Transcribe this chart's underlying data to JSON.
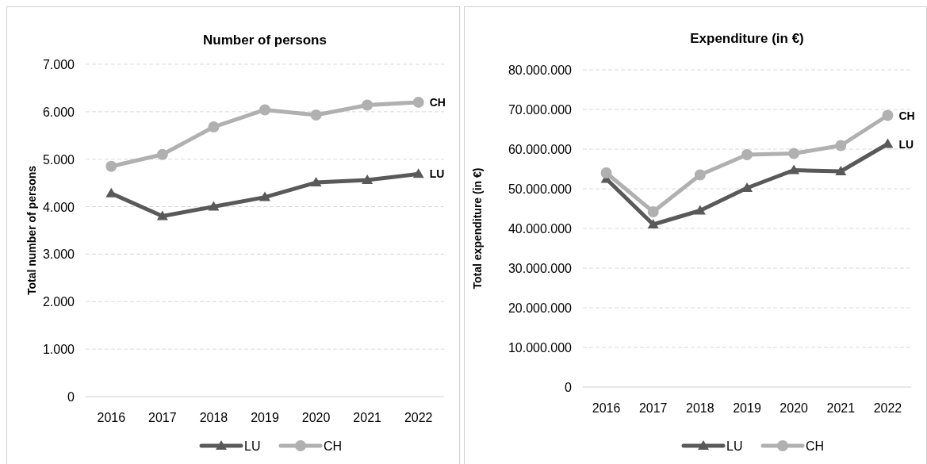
{
  "chart_data": [
    {
      "type": "line",
      "title": "Number of persons",
      "ylabel": "Total number of persons",
      "categories": [
        "2016",
        "2017",
        "2018",
        "2019",
        "2020",
        "2021",
        "2022"
      ],
      "series": [
        {
          "name": "LU",
          "color": "#595959",
          "marker": "triangle",
          "values": [
            4280,
            3800,
            4000,
            4200,
            4510,
            4560,
            4690
          ]
        },
        {
          "name": "CH",
          "color": "#b0b0b0",
          "marker": "circle",
          "values": [
            4850,
            5100,
            5680,
            6040,
            5930,
            6140,
            6200
          ]
        }
      ],
      "ylim": [
        0,
        7000
      ],
      "yticks": [
        0,
        {
          "value": 1000,
          "label": "1.000"
        },
        {
          "value": 2000,
          "label": "2.000"
        },
        {
          "value": 3000,
          "label": "3.000"
        },
        {
          "value": 4000,
          "label": "4.000"
        },
        {
          "value": 5000,
          "label": "5.000"
        },
        {
          "value": 6000,
          "label": "6.000"
        },
        {
          "value": 7000,
          "label": "7.000"
        }
      ],
      "grid": "y",
      "legend": "bottom",
      "line_style": "solid"
    },
    {
      "type": "line",
      "title": "Expenditure (in €)",
      "ylabel": "Total expenditure (in €)",
      "categories": [
        "2016",
        "2017",
        "2018",
        "2019",
        "2020",
        "2021",
        "2022"
      ],
      "series": [
        {
          "name": "LU",
          "color": "#595959",
          "marker": "triangle",
          "values": [
            52500000,
            41000000,
            44500000,
            50200000,
            54700000,
            54400000,
            61300000
          ]
        },
        {
          "name": "CH",
          "color": "#b0b0b0",
          "marker": "circle",
          "values": [
            54000000,
            44200000,
            53500000,
            58600000,
            58900000,
            60900000,
            68500000
          ]
        }
      ],
      "ylim": [
        0,
        80000000
      ],
      "yticks": [
        0,
        {
          "value": 10000000,
          "label": "10.000.000"
        },
        {
          "value": 20000000,
          "label": "20.000.000"
        },
        {
          "value": 30000000,
          "label": "30.000.000"
        },
        {
          "value": 40000000,
          "label": "40.000.000"
        },
        {
          "value": 50000000,
          "label": "50.000.000"
        },
        {
          "value": 60000000,
          "label": "60.000.000"
        },
        {
          "value": 70000000,
          "label": "70.000.000"
        },
        {
          "value": 80000000,
          "label": "80.000.000"
        }
      ],
      "grid": "y",
      "legend": "bottom",
      "line_style": "solid"
    }
  ]
}
